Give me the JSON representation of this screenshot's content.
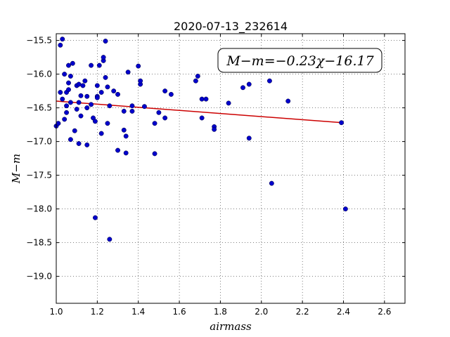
{
  "chart_data": {
    "type": "scatter",
    "title": "2020-07-13_232614",
    "xlabel": "airmass",
    "ylabel": "M−m",
    "xlim": [
      1.0,
      2.7
    ],
    "ylim": [
      -19.4,
      -15.4
    ],
    "y_inverted": true,
    "grid": true,
    "x_ticks": [
      1.0,
      1.2,
      1.4,
      1.6,
      1.8,
      2.0,
      2.2,
      2.4,
      2.6
    ],
    "x_tick_labels": [
      "1.0",
      "1.2",
      "1.4",
      "1.6",
      "1.8",
      "2.0",
      "2.2",
      "2.4",
      "2.6"
    ],
    "y_ticks": [
      -15.5,
      -16.0,
      -16.5,
      -17.0,
      -17.5,
      -18.0,
      -18.5,
      -19.0
    ],
    "y_tick_labels": [
      "−15.5",
      "−16.0",
      "−16.5",
      "−17.0",
      "−17.5",
      "−18.0",
      "−18.5",
      "−19.0"
    ],
    "annotation": "M−m=−0.23χ−16.17",
    "annotation_position": "top-right",
    "series": [
      {
        "kind": "points",
        "color": "#0000cc",
        "points": [
          [
            1.0,
            -16.77
          ],
          [
            1.01,
            -16.73
          ],
          [
            1.02,
            -15.57
          ],
          [
            1.03,
            -15.48
          ],
          [
            1.02,
            -16.27
          ],
          [
            1.03,
            -16.37
          ],
          [
            1.04,
            -16.0
          ],
          [
            1.05,
            -16.27
          ],
          [
            1.06,
            -15.87
          ],
          [
            1.06,
            -16.13
          ],
          [
            1.07,
            -16.03
          ],
          [
            1.04,
            -16.67
          ],
          [
            1.05,
            -16.57
          ],
          [
            1.05,
            -16.47
          ],
          [
            1.06,
            -16.23
          ],
          [
            1.07,
            -16.42
          ],
          [
            1.07,
            -16.97
          ],
          [
            1.08,
            -15.84
          ],
          [
            1.09,
            -16.84
          ],
          [
            1.1,
            -16.17
          ],
          [
            1.1,
            -16.52
          ],
          [
            1.11,
            -16.15
          ],
          [
            1.11,
            -17.03
          ],
          [
            1.12,
            -16.32
          ],
          [
            1.12,
            -16.62
          ],
          [
            1.13,
            -16.17
          ],
          [
            1.14,
            -16.1
          ],
          [
            1.15,
            -16.33
          ],
          [
            1.15,
            -16.5
          ],
          [
            1.15,
            -17.05
          ],
          [
            1.17,
            -16.45
          ],
          [
            1.17,
            -15.87
          ],
          [
            1.18,
            -16.65
          ],
          [
            1.19,
            -16.7
          ],
          [
            1.2,
            -16.17
          ],
          [
            1.2,
            -16.33
          ],
          [
            1.21,
            -15.87
          ],
          [
            1.22,
            -16.27
          ],
          [
            1.22,
            -16.88
          ],
          [
            1.23,
            -15.8
          ],
          [
            1.23,
            -15.75
          ],
          [
            1.24,
            -15.51
          ],
          [
            1.24,
            -16.05
          ],
          [
            1.25,
            -16.73
          ],
          [
            1.25,
            -16.19
          ],
          [
            1.26,
            -16.47
          ],
          [
            1.28,
            -16.25
          ],
          [
            1.3,
            -16.3
          ],
          [
            1.3,
            -17.13
          ],
          [
            1.33,
            -16.55
          ],
          [
            1.33,
            -16.83
          ],
          [
            1.34,
            -16.92
          ],
          [
            1.34,
            -17.17
          ],
          [
            1.35,
            -15.97
          ],
          [
            1.37,
            -16.47
          ],
          [
            1.37,
            -16.55
          ],
          [
            1.4,
            -15.88
          ],
          [
            1.41,
            -16.15
          ],
          [
            1.41,
            -16.1
          ],
          [
            1.43,
            -16.48
          ],
          [
            1.48,
            -16.73
          ],
          [
            1.48,
            -17.18
          ],
          [
            1.5,
            -16.57
          ],
          [
            1.53,
            -16.65
          ],
          [
            1.53,
            -16.25
          ],
          [
            1.56,
            -16.3
          ],
          [
            1.68,
            -16.1
          ],
          [
            1.69,
            -16.03
          ],
          [
            1.71,
            -16.37
          ],
          [
            1.71,
            -16.65
          ],
          [
            1.73,
            -16.37
          ],
          [
            1.77,
            -16.78
          ],
          [
            1.77,
            -16.82
          ],
          [
            1.84,
            -16.43
          ],
          [
            1.91,
            -16.2
          ],
          [
            1.94,
            -16.95
          ],
          [
            1.94,
            -16.15
          ],
          [
            2.04,
            -16.1
          ],
          [
            2.05,
            -17.62
          ],
          [
            2.13,
            -16.4
          ],
          [
            2.39,
            -16.72
          ],
          [
            2.41,
            -18.0
          ],
          [
            1.19,
            -18.13
          ],
          [
            1.26,
            -18.45
          ],
          [
            1.2,
            -16.35
          ],
          [
            1.11,
            -16.42
          ]
        ]
      },
      {
        "kind": "fit-line",
        "color": "#cc0000",
        "slope": -0.23,
        "intercept": -16.17,
        "x_range": [
          1.0,
          2.4
        ]
      }
    ]
  }
}
